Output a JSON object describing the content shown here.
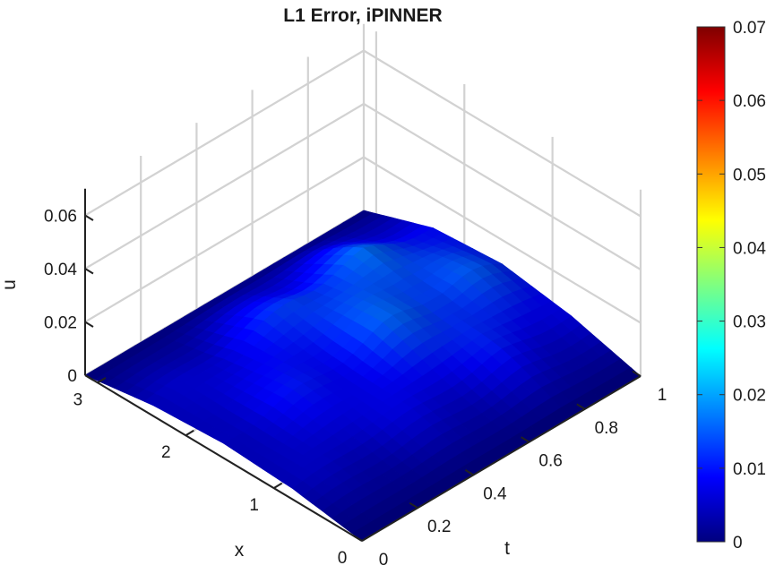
{
  "chart_data": {
    "type": "surface",
    "title": "L1 Error, iPINNER",
    "xlabel": "x",
    "ylabel": "t",
    "zlabel": "u",
    "x_ticks": [
      "0",
      "1",
      "2",
      "3"
    ],
    "t_ticks": [
      "0",
      "0.2",
      "0.4",
      "0.6",
      "0.8",
      "1"
    ],
    "z_ticks": [
      "0",
      "0.02",
      "0.04",
      "0.06"
    ],
    "xlim": [
      0,
      3.1416
    ],
    "tlim": [
      0,
      1
    ],
    "zlim": [
      0,
      0.07
    ],
    "grid": true,
    "colormap": "jet",
    "colorbar": {
      "ticks": [
        "0",
        "0.01",
        "0.02",
        "0.03",
        "0.04",
        "0.05",
        "0.06",
        "0.07"
      ],
      "range": [
        0,
        0.07
      ],
      "placement": "right"
    },
    "surface_samples": {
      "x": [
        0,
        0.785,
        1.571,
        2.356,
        3.142
      ],
      "t": [
        0,
        0.25,
        0.5,
        0.75,
        1
      ],
      "u": [
        [
          0,
          0.004,
          0.0055,
          0.004,
          0
        ],
        [
          0,
          0.006,
          0.0085,
          0.007,
          0
        ],
        [
          0,
          0.007,
          0.012,
          0.013,
          0
        ],
        [
          0,
          0.009,
          0.016,
          0.015,
          0
        ],
        [
          0,
          0.007,
          0.011,
          0.009,
          0
        ]
      ]
    }
  }
}
